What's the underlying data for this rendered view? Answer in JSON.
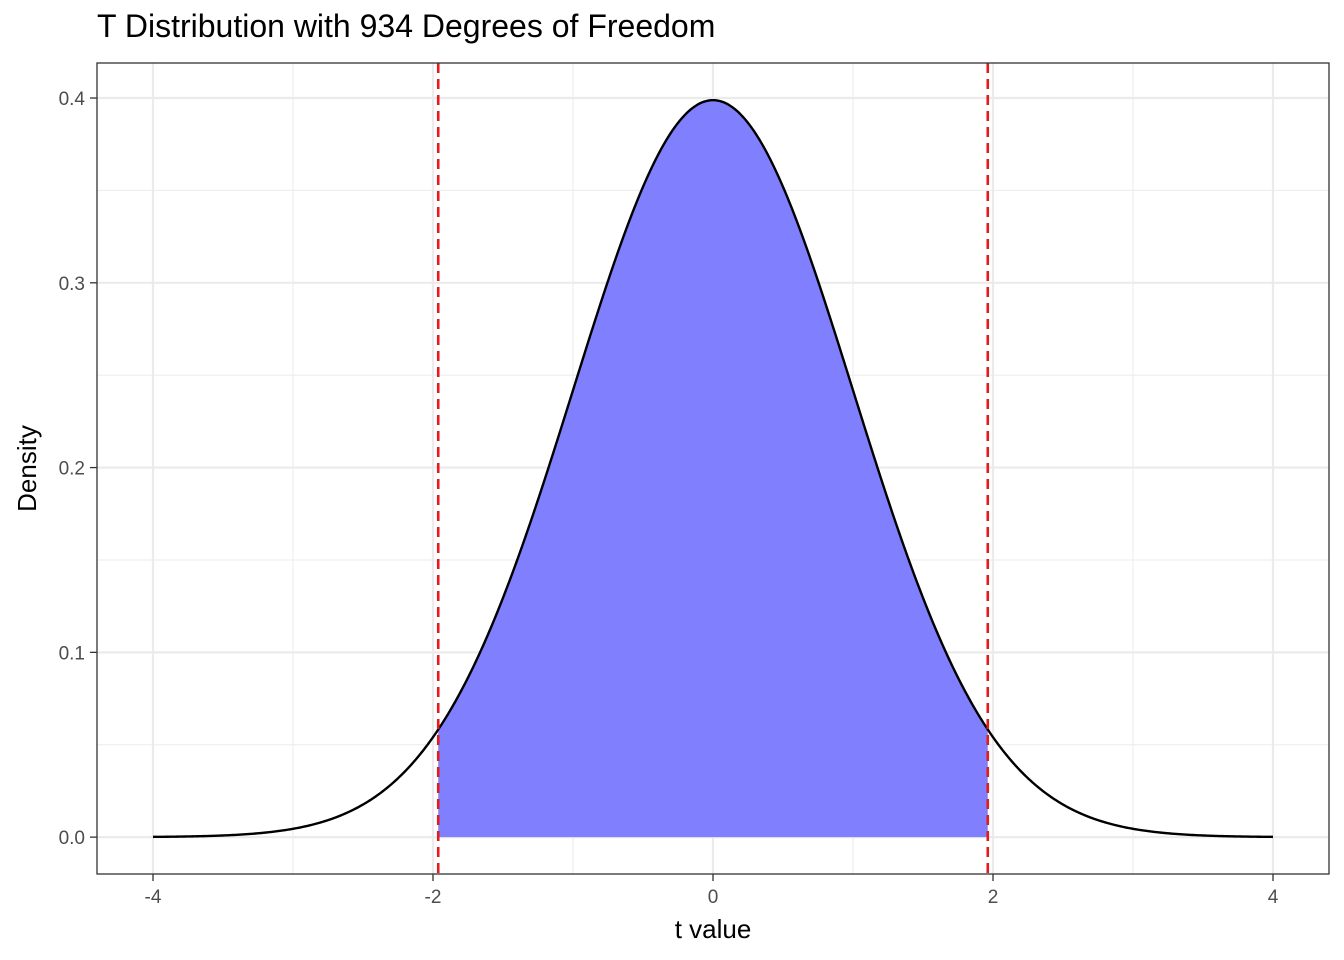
{
  "chart_data": {
    "type": "area",
    "title": "T Distribution with 934 Degrees of Freedom",
    "xlabel": "t value",
    "ylabel": "Density",
    "degrees_of_freedom": 934,
    "xlim": [
      -4,
      4
    ],
    "ylim": [
      0,
      0.4
    ],
    "x_ticks": [
      -4,
      -2,
      0,
      2,
      4
    ],
    "x_tick_labels": [
      "-4",
      "-2",
      "0",
      "2",
      "4"
    ],
    "y_ticks": [
      0.0,
      0.1,
      0.2,
      0.3,
      0.4
    ],
    "y_tick_labels": [
      "0.0",
      "0.1",
      "0.2",
      "0.3",
      "0.4"
    ],
    "grid": true,
    "critical_values": [
      -1.9626,
      1.9626
    ],
    "shaded_region": [
      -1.9626,
      1.9626
    ],
    "colors": {
      "curve": "#000000",
      "fill": "#8080ff",
      "critical_lines": "#e41a1c",
      "grid": "#ebebeb",
      "panel_border": "#333333"
    }
  }
}
